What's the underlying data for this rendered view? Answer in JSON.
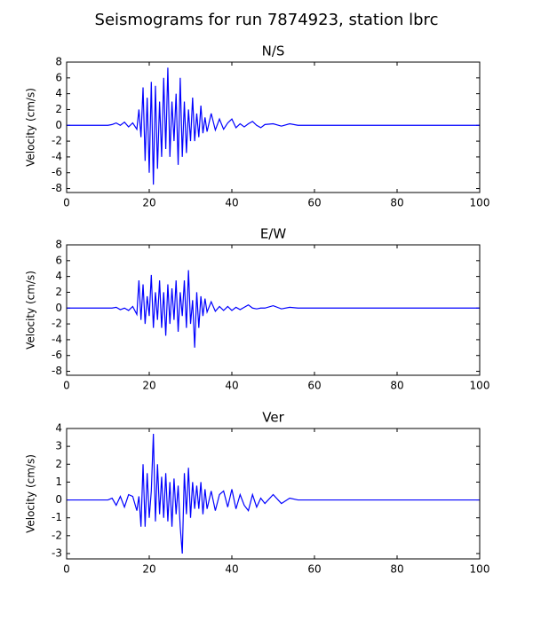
{
  "title": "Seismograms for run 7874923, station lbrc",
  "chart_data": [
    {
      "type": "line",
      "title": "N/S",
      "ylabel": "Velocity (cm/s)",
      "xlim": [
        0,
        100
      ],
      "xticks": [
        0,
        20,
        40,
        60,
        80,
        100
      ],
      "ylim": [
        -8.5,
        8
      ],
      "yticks": [
        -8,
        -6,
        -4,
        -2,
        0,
        2,
        4,
        6,
        8
      ],
      "x": [
        0,
        10,
        11,
        12,
        13,
        14,
        15,
        16,
        17,
        17.5,
        18,
        18.5,
        19,
        19.5,
        20,
        20.5,
        21,
        21.5,
        22,
        22.5,
        23,
        23.5,
        24,
        24.5,
        25,
        25.5,
        26,
        26.5,
        27,
        27.5,
        28,
        28.5,
        29,
        29.5,
        30,
        30.5,
        31,
        31.5,
        32,
        32.5,
        33,
        33.5,
        34,
        35,
        36,
        37,
        38,
        39,
        40,
        41,
        42,
        43,
        44,
        45,
        46,
        47,
        48,
        50,
        52,
        54,
        56,
        58,
        60,
        100
      ],
      "series": [
        {
          "color": "#0000ff",
          "values": [
            0,
            0,
            0.1,
            0.3,
            0,
            0.4,
            -0.2,
            0.3,
            -0.5,
            2,
            -1.5,
            4.8,
            -4.5,
            3.5,
            -6,
            5.5,
            -7.5,
            5,
            -5.5,
            3,
            -4,
            6,
            -3,
            7.3,
            -4,
            3,
            -2,
            4,
            -5,
            6,
            -4,
            3,
            -3.5,
            2,
            -2,
            3.5,
            -2,
            1.5,
            -1.5,
            2.5,
            -1,
            1,
            -0.8,
            1.5,
            -0.6,
            0.8,
            -0.5,
            0.3,
            0.8,
            -0.3,
            0.2,
            -0.2,
            0.2,
            0.5,
            0,
            -0.3,
            0.1,
            0.2,
            -0.1,
            0.2,
            0,
            0,
            0,
            0
          ]
        }
      ]
    },
    {
      "type": "line",
      "title": "E/W",
      "ylabel": "Velocity (cm/s)",
      "xlim": [
        0,
        100
      ],
      "xticks": [
        0,
        20,
        40,
        60,
        80,
        100
      ],
      "ylim": [
        -8.5,
        8
      ],
      "yticks": [
        -8,
        -6,
        -4,
        -2,
        0,
        2,
        4,
        6,
        8
      ],
      "x": [
        0,
        10,
        11,
        12,
        13,
        14,
        15,
        16,
        17,
        17.5,
        18,
        18.5,
        19,
        19.5,
        20,
        20.5,
        21,
        21.5,
        22,
        22.5,
        23,
        23.5,
        24,
        24.5,
        25,
        25.5,
        26,
        26.5,
        27,
        27.5,
        28,
        28.5,
        29,
        29.5,
        30,
        30.5,
        31,
        31.5,
        32,
        32.5,
        33,
        33.5,
        34,
        35,
        36,
        37,
        38,
        39,
        40,
        41,
        42,
        43,
        44,
        45,
        46,
        47,
        48,
        50,
        52,
        54,
        56,
        58,
        60,
        100
      ],
      "series": [
        {
          "color": "#0000ff",
          "values": [
            0,
            0,
            0,
            0.1,
            -0.2,
            0,
            -0.3,
            0.2,
            -0.8,
            3.5,
            -1.5,
            3,
            -2,
            1.5,
            -1,
            4.2,
            -2.5,
            2,
            -1.5,
            3.5,
            -2.5,
            2,
            -3.5,
            3,
            -2,
            2.5,
            -1.5,
            3.5,
            -3,
            2,
            -1,
            3.5,
            -2.5,
            4.8,
            -2,
            1,
            -5,
            2,
            -2.5,
            1.5,
            -1,
            1.2,
            -0.5,
            0.8,
            -0.4,
            0.2,
            -0.3,
            0.2,
            -0.3,
            0.1,
            -0.2,
            0.1,
            0.4,
            0,
            -0.1,
            0,
            0,
            0.3,
            -0.1,
            0.1,
            0,
            0,
            0,
            0
          ]
        }
      ]
    },
    {
      "type": "line",
      "title": "Ver",
      "ylabel": "Velocity (cm/s)",
      "xlim": [
        0,
        100
      ],
      "xticks": [
        0,
        20,
        40,
        60,
        80,
        100
      ],
      "ylim": [
        -3.3,
        4
      ],
      "yticks": [
        -3,
        -2,
        -1,
        0,
        1,
        2,
        3,
        4
      ],
      "x": [
        0,
        10,
        11,
        12,
        13,
        14,
        15,
        16,
        17,
        17.5,
        18,
        18.5,
        19,
        19.5,
        20,
        20.5,
        21,
        21.5,
        22,
        22.5,
        23,
        23.5,
        24,
        24.5,
        25,
        25.5,
        26,
        26.5,
        27,
        27.5,
        28,
        28.5,
        29,
        29.5,
        30,
        30.5,
        31,
        31.5,
        32,
        32.5,
        33,
        33.5,
        34,
        35,
        36,
        37,
        38,
        39,
        40,
        41,
        42,
        43,
        44,
        45,
        46,
        47,
        48,
        50,
        52,
        54,
        56,
        58,
        60,
        100
      ],
      "series": [
        {
          "color": "#0000ff",
          "values": [
            0,
            0,
            0.1,
            -0.3,
            0.2,
            -0.4,
            0.3,
            0.2,
            -0.6,
            0.2,
            -1.5,
            2,
            -1.5,
            1.5,
            -1,
            0.5,
            3.7,
            -1.2,
            2,
            -0.8,
            1.3,
            -1,
            1.5,
            -1.2,
            1,
            -1.5,
            1.2,
            -0.8,
            0.8,
            -1.5,
            -3,
            1.5,
            -0.8,
            1.8,
            -1,
            1,
            -0.5,
            0.8,
            -0.5,
            1,
            -0.8,
            0.6,
            -0.5,
            0.5,
            -0.6,
            0.3,
            0.5,
            -0.4,
            0.6,
            -0.5,
            0.3,
            -0.3,
            -0.6,
            0.3,
            -0.4,
            0.1,
            -0.2,
            0.3,
            -0.2,
            0.1,
            0,
            0,
            0,
            0
          ]
        }
      ]
    }
  ]
}
